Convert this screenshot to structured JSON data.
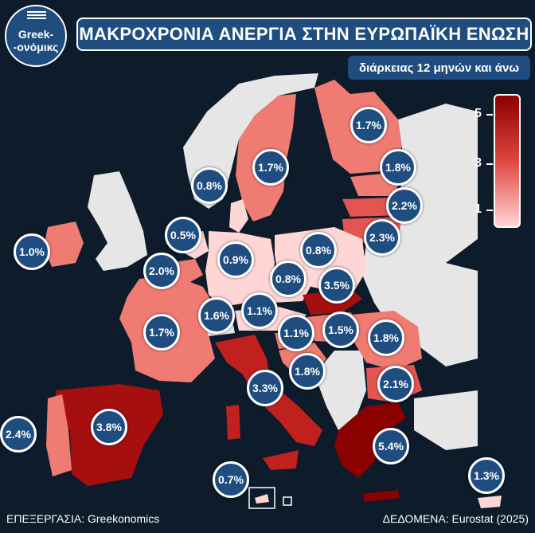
{
  "logo": {
    "line1": "Greek-",
    "line2": "-ονόμικς"
  },
  "title": "ΜΑΚΡΟΧΡΟΝΙΑ ΑΝΕΡΓΙΑ ΣΤΗΝ ΕΥΡΩΠΑΪΚΗ ΕΝΩΣΗ",
  "subtitle": "διάρκειας 12 μηνών και άνω",
  "legend": {
    "ticks": [
      "5",
      "3",
      "1"
    ]
  },
  "colors": {
    "background": "#0d1b2a",
    "bubble": "#1f4d80",
    "no_data": "#e6e6e6",
    "low": "#ffd1d1",
    "mid": "#ee6a62",
    "high": "#c0201e",
    "very_high": "#8b0000"
  },
  "values": {
    "finland": "1.7%",
    "sweden": "1.7%",
    "estonia": "1.8%",
    "latvia": "2.2%",
    "lithuania": "2.3%",
    "denmark": "0.8%",
    "ireland": "1.0%",
    "netherlands": "0.5%",
    "belgium": "2.0%",
    "germany": "0.9%",
    "poland": "0.8%",
    "czechia": "0.8%",
    "slovakia": "3.5%",
    "luxembourg": "1.6%",
    "austria": "1.1%",
    "france": "1.7%",
    "slovenia": "1.1%",
    "hungary": "1.5%",
    "romania": "1.8%",
    "croatia": "1.8%",
    "bulgaria": "2.1%",
    "italy": "3.3%",
    "portugal": "2.4%",
    "spain": "3.8%",
    "greece": "5.4%",
    "malta": "0.7%",
    "cyprus": "1.3%"
  },
  "footer": {
    "left": "ΕΠΕΞΕΡΓΑΣΙΑ: Greekonomics",
    "right": "ΔΕΔΟΜΕΝΑ: Eurostat (2025)"
  }
}
